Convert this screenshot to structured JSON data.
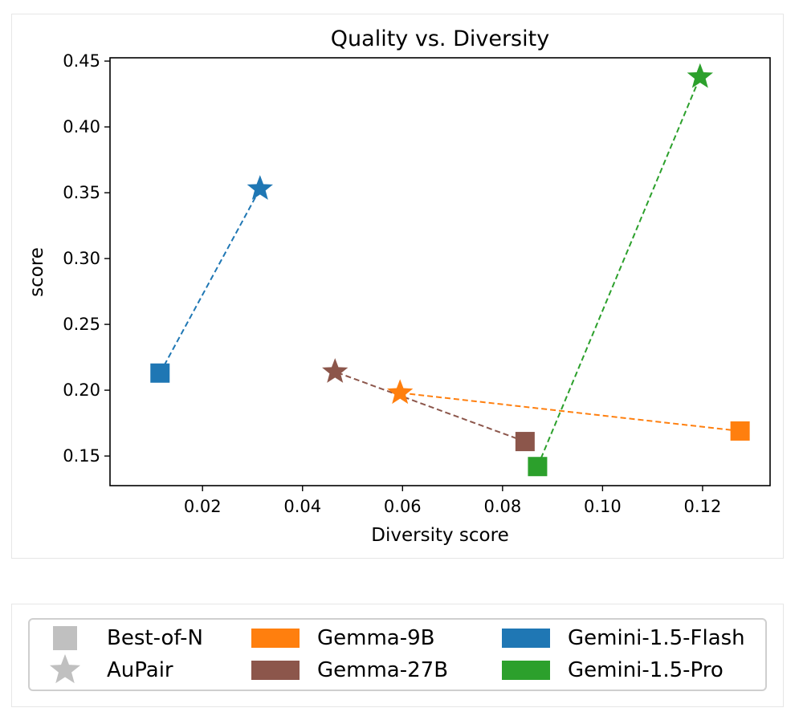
{
  "chart_data": {
    "type": "scatter",
    "title": "Quality vs. Diversity",
    "xlabel": "Diversity score",
    "ylabel": "score",
    "xlim": [
      0.0015,
      0.1335
    ],
    "ylim": [
      0.1275,
      0.4525
    ],
    "x_ticks": [
      0.02,
      0.04,
      0.06,
      0.08,
      0.1,
      0.12
    ],
    "x_tick_labels": [
      "0.02",
      "0.04",
      "0.06",
      "0.08",
      "0.10",
      "0.12"
    ],
    "y_ticks": [
      0.15,
      0.2,
      0.25,
      0.3,
      0.35,
      0.4,
      0.45
    ],
    "y_tick_labels": [
      "0.15",
      "0.20",
      "0.25",
      "0.30",
      "0.35",
      "0.40",
      "0.45"
    ],
    "grid": false,
    "legend_placement": "below plot",
    "series": [
      {
        "name": "Gemma-9B",
        "color": "#ff7f0e",
        "best_of_n": {
          "x": 0.1275,
          "y": 0.169
        },
        "aupair": {
          "x": 0.0595,
          "y": 0.198
        }
      },
      {
        "name": "Gemma-27B",
        "color": "#8c564b",
        "best_of_n": {
          "x": 0.0845,
          "y": 0.161
        },
        "aupair": {
          "x": 0.0465,
          "y": 0.214
        }
      },
      {
        "name": "Gemini-1.5-Flash",
        "color": "#1f77b4",
        "best_of_n": {
          "x": 0.0115,
          "y": 0.213
        },
        "aupair": {
          "x": 0.0315,
          "y": 0.353
        }
      },
      {
        "name": "Gemini-1.5-Pro",
        "color": "#2ca02c",
        "best_of_n": {
          "x": 0.087,
          "y": 0.142
        },
        "aupair": {
          "x": 0.1195,
          "y": 0.438
        }
      }
    ],
    "legend": {
      "marker_entries": [
        {
          "label": "Best-of-N",
          "icon": "square-marker-icon",
          "color": "#c0c0c0"
        },
        {
          "label": "AuPair",
          "icon": "star-marker-icon",
          "color": "#c0c0c0"
        }
      ],
      "color_entries": [
        {
          "label": "Gemma-9B",
          "color": "#ff7f0e"
        },
        {
          "label": "Gemma-27B",
          "color": "#8c564b"
        },
        {
          "label": "Gemini-1.5-Flash",
          "color": "#1f77b4"
        },
        {
          "label": "Gemini-1.5-Pro",
          "color": "#2ca02c"
        }
      ]
    }
  }
}
